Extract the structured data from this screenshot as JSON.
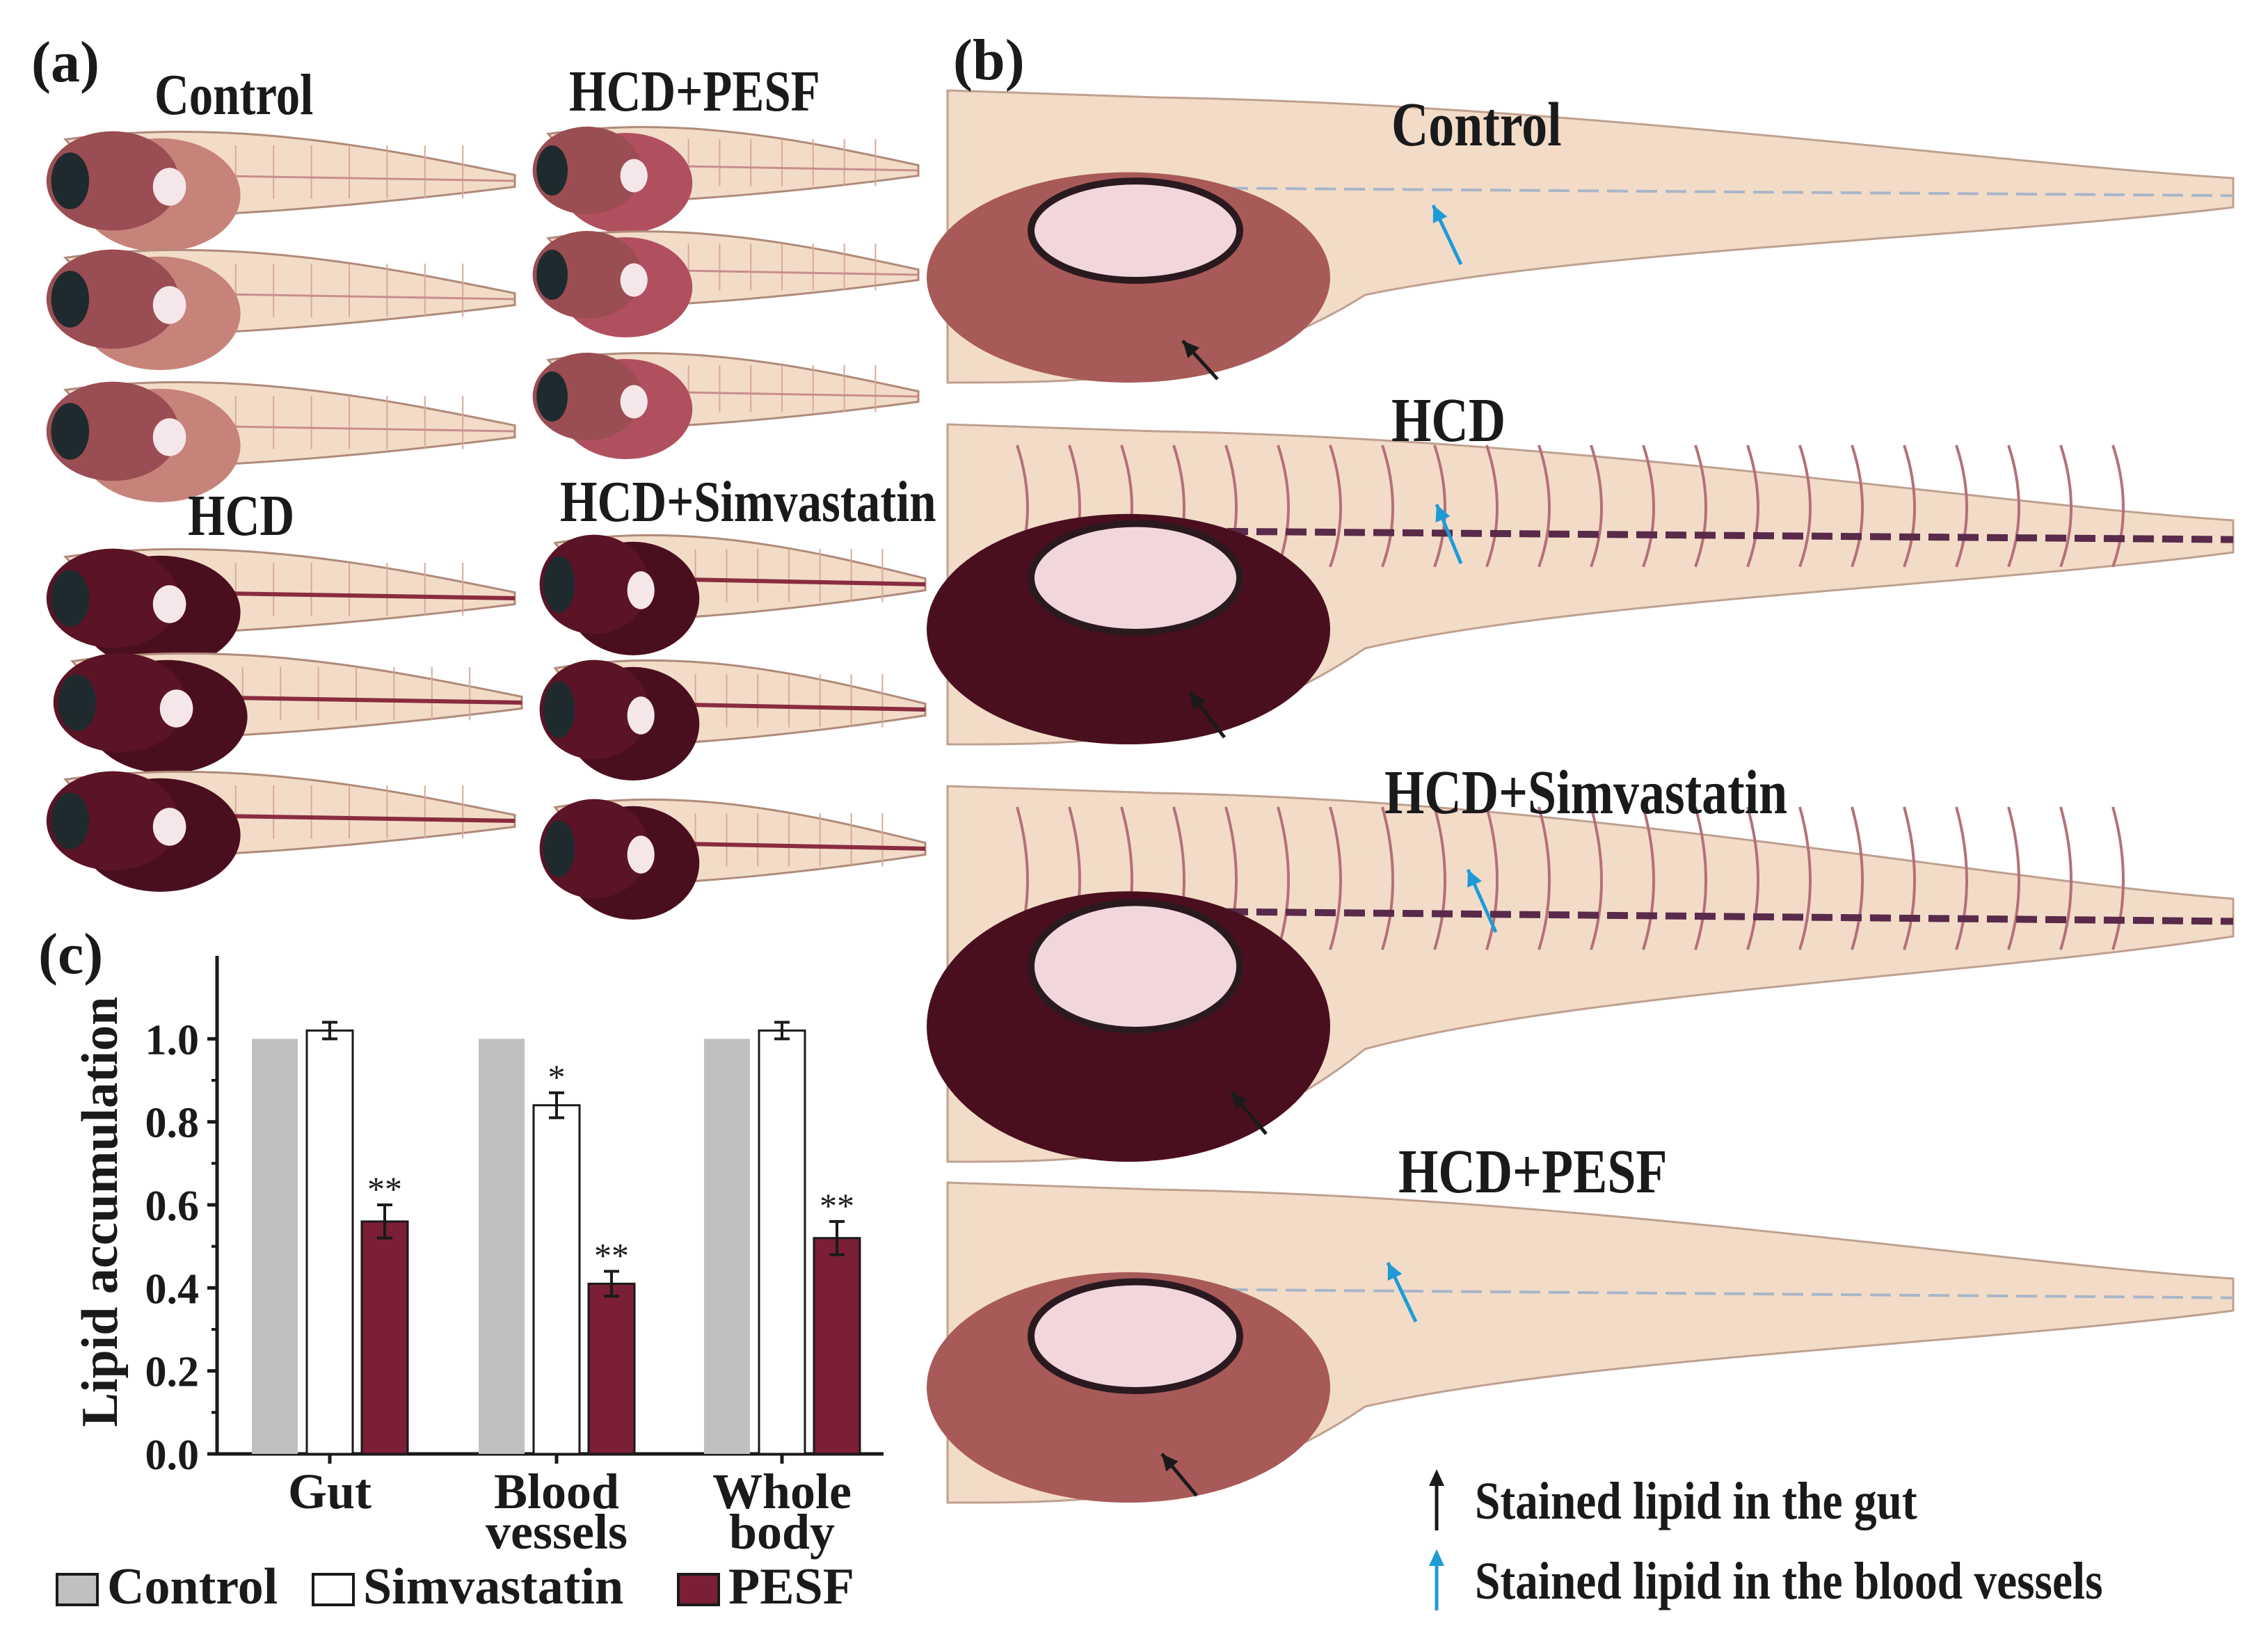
{
  "panels": {
    "a": {
      "letter": "(a)",
      "groups": [
        "Control",
        "HCD+PESF",
        "HCD",
        "HCD+Simvastatin"
      ]
    },
    "b": {
      "letter": "(b)",
      "groups": [
        "Control",
        "HCD",
        "HCD+Simvastatin",
        "HCD+PESF"
      ],
      "legend": [
        "Stained lipid in the gut",
        "Stained lipid in the blood vessels"
      ],
      "arrow_colors": [
        "#1a1a1a",
        "#1e9bd7"
      ]
    },
    "c": {
      "letter": "(c)"
    }
  },
  "colors": {
    "control": "#c0c0c0",
    "simvastatin": "#ffffff",
    "pesf": "#7a1f35",
    "stain_dark": "#4a0f1f",
    "stain_mid": "#b0505f",
    "body_light": "#f2dcc8"
  },
  "chart_data": {
    "type": "bar",
    "categories": [
      "Gut",
      "Blood vessels",
      "Whole body"
    ],
    "series": [
      {
        "name": "Control",
        "values": [
          1.0,
          1.0,
          1.0
        ],
        "errors": [
          0,
          0,
          0
        ],
        "marks": [
          "",
          "",
          ""
        ]
      },
      {
        "name": "Simvastatin",
        "values": [
          1.02,
          0.84,
          1.02
        ],
        "errors": [
          0.02,
          0.03,
          0.02
        ],
        "marks": [
          "",
          "*",
          ""
        ]
      },
      {
        "name": "PESF",
        "values": [
          0.56,
          0.41,
          0.52
        ],
        "errors": [
          0.04,
          0.03,
          0.04
        ],
        "marks": [
          "**",
          "**",
          "**"
        ]
      }
    ],
    "ylabel": "Lipid accumulation",
    "xlabel": "",
    "ylim": [
      0,
      1.2
    ],
    "yticks": [
      "0.0",
      "0.2",
      "0.4",
      "0.6",
      "0.8",
      "1.0"
    ],
    "category_labels": [
      [
        "Gut"
      ],
      [
        "Blood",
        "vessels"
      ],
      [
        "Whole",
        "body"
      ]
    ],
    "legend_position": "bottom"
  }
}
